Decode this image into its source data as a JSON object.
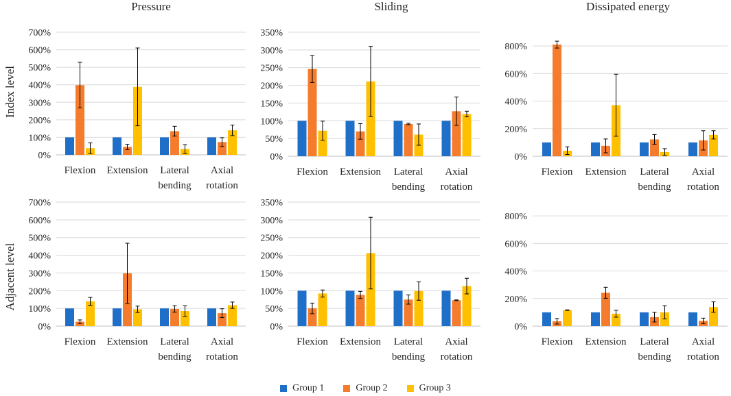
{
  "column_titles": [
    "Pressure",
    "Sliding",
    "Dissipated energy"
  ],
  "row_labels": [
    "Index level",
    "Adjacent level"
  ],
  "legend": [
    {
      "name": "Group 1",
      "color": "#1f6fc9"
    },
    {
      "name": "Group 2",
      "color": "#f47c2c"
    },
    {
      "name": "Group 3",
      "color": "#ffc000"
    }
  ],
  "chart_data": [
    {
      "type": "bar",
      "title": "Pressure",
      "ylabel": "Index level",
      "categories": [
        "Flexion",
        "Extension",
        "Lateral bending",
        "Axial rotation"
      ],
      "ylim": [
        0,
        700
      ],
      "yticks": [
        "0%",
        "100%",
        "200%",
        "300%",
        "400%",
        "500%",
        "600%",
        "700%"
      ],
      "series": [
        {
          "name": "Group 1",
          "values": [
            100,
            100,
            100,
            100
          ],
          "errors": [
            0,
            0,
            0,
            0
          ]
        },
        {
          "name": "Group 2",
          "values": [
            398,
            45,
            135,
            73
          ],
          "errors": [
            130,
            15,
            28,
            25
          ]
        },
        {
          "name": "Group 3",
          "values": [
            38,
            388,
            33,
            140
          ],
          "errors": [
            30,
            222,
            25,
            30
          ]
        }
      ]
    },
    {
      "type": "bar",
      "title": "Sliding",
      "ylabel": "Index level",
      "categories": [
        "Flexion",
        "Extension",
        "Lateral bending",
        "Axial rotation"
      ],
      "ylim": [
        0,
        350
      ],
      "yticks": [
        "0%",
        "50%",
        "100%",
        "150%",
        "200%",
        "250%",
        "300%",
        "350%"
      ],
      "series": [
        {
          "name": "Group 1",
          "values": [
            100,
            100,
            100,
            100
          ],
          "errors": [
            0,
            0,
            0,
            0
          ]
        },
        {
          "name": "Group 2",
          "values": [
            246,
            70,
            91,
            127
          ],
          "errors": [
            38,
            22,
            2,
            40
          ]
        },
        {
          "name": "Group 3",
          "values": [
            72,
            211,
            61,
            119
          ],
          "errors": [
            27,
            99,
            30,
            8
          ]
        }
      ]
    },
    {
      "type": "bar",
      "title": "Dissipated energy",
      "ylabel": "Index level",
      "categories": [
        "Flexion",
        "Extension",
        "Lateral bending",
        "Axial rotation"
      ],
      "ylim": [
        0,
        900
      ],
      "yticks": [
        "0%",
        "200%",
        "400%",
        "600%",
        "800%"
      ],
      "series": [
        {
          "name": "Group 1",
          "values": [
            100,
            100,
            100,
            100
          ],
          "errors": [
            0,
            0,
            0,
            0
          ]
        },
        {
          "name": "Group 2",
          "values": [
            810,
            75,
            122,
            115
          ],
          "errors": [
            25,
            50,
            35,
            70
          ]
        },
        {
          "name": "Group 3",
          "values": [
            40,
            370,
            30,
            155
          ],
          "errors": [
            28,
            225,
            25,
            30
          ]
        }
      ]
    },
    {
      "type": "bar",
      "title": "Pressure",
      "ylabel": "Adjacent level",
      "categories": [
        "Flexion",
        "Extension",
        "Lateral bending",
        "Axial rotation"
      ],
      "ylim": [
        0,
        700
      ],
      "yticks": [
        "0%",
        "100%",
        "200%",
        "300%",
        "400%",
        "500%",
        "600%",
        "700%"
      ],
      "series": [
        {
          "name": "Group 1",
          "values": [
            100,
            100,
            100,
            100
          ],
          "errors": [
            0,
            0,
            0,
            0
          ]
        },
        {
          "name": "Group 2",
          "values": [
            25,
            298,
            97,
            73
          ],
          "errors": [
            10,
            170,
            18,
            25
          ]
        },
        {
          "name": "Group 3",
          "values": [
            140,
            95,
            85,
            118
          ],
          "errors": [
            22,
            18,
            30,
            18
          ]
        }
      ]
    },
    {
      "type": "bar",
      "title": "Sliding",
      "ylabel": "Adjacent level",
      "categories": [
        "Flexion",
        "Extension",
        "Lateral bending",
        "Axial rotation"
      ],
      "ylim": [
        0,
        350
      ],
      "yticks": [
        "0%",
        "50%",
        "100%",
        "150%",
        "200%",
        "250%",
        "300%",
        "350%"
      ],
      "series": [
        {
          "name": "Group 1",
          "values": [
            100,
            100,
            100,
            100
          ],
          "errors": [
            0,
            0,
            0,
            0
          ]
        },
        {
          "name": "Group 2",
          "values": [
            50,
            88,
            75,
            73
          ],
          "errors": [
            15,
            10,
            13,
            1
          ]
        },
        {
          "name": "Group 3",
          "values": [
            92,
            206,
            99,
            113
          ],
          "errors": [
            10,
            101,
            26,
            22
          ]
        }
      ]
    },
    {
      "type": "bar",
      "title": "Dissipated energy",
      "ylabel": "Adjacent level",
      "categories": [
        "Flexion",
        "Extension",
        "Lateral bending",
        "Axial rotation"
      ],
      "ylim": [
        0,
        900
      ],
      "yticks": [
        "0%",
        "200%",
        "400%",
        "600%",
        "800%"
      ],
      "series": [
        {
          "name": "Group 1",
          "values": [
            100,
            100,
            100,
            100
          ],
          "errors": [
            0,
            0,
            0,
            0
          ]
        },
        {
          "name": "Group 2",
          "values": [
            35,
            242,
            65,
            38
          ],
          "errors": [
            20,
            40,
            35,
            20
          ]
        },
        {
          "name": "Group 3",
          "values": [
            116,
            90,
            100,
            138
          ],
          "errors": [
            2,
            25,
            48,
            38
          ]
        }
      ]
    }
  ]
}
